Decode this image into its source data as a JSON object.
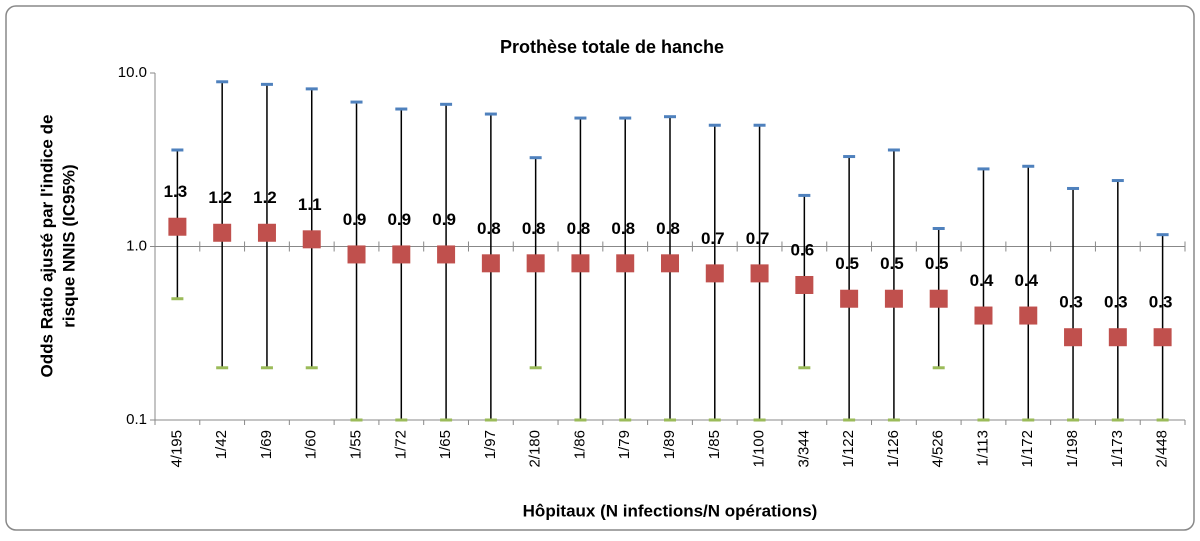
{
  "chart_data": {
    "type": "errorbar",
    "title": "Prothèse totale de hanche",
    "xlabel": "Hôpitaux (N infections/N opérations)",
    "ylabel_lines": [
      "Odds Ratio ajusté par l'indice de",
      "risque NNIS (IC95%)"
    ],
    "categories": [
      "4/195",
      "1/42",
      "1/69",
      "1/60",
      "1/55",
      "1/72",
      "1/65",
      "1/97",
      "2/180",
      "1/86",
      "1/79",
      "1/89",
      "1/85",
      "1/100",
      "3/344",
      "1/122",
      "1/126",
      "4/526",
      "1/113",
      "1/172",
      "1/198",
      "1/173",
      "2/448"
    ],
    "values": [
      1.3,
      1.2,
      1.2,
      1.1,
      0.9,
      0.9,
      0.9,
      0.8,
      0.8,
      0.8,
      0.8,
      0.8,
      0.7,
      0.7,
      0.6,
      0.5,
      0.5,
      0.5,
      0.4,
      0.4,
      0.3,
      0.3,
      0.3
    ],
    "upper": [
      3.6,
      8.9,
      8.6,
      8.1,
      6.8,
      6.2,
      6.6,
      5.8,
      3.25,
      5.5,
      5.5,
      5.6,
      5.0,
      5.0,
      1.97,
      3.3,
      3.6,
      1.27,
      2.8,
      2.9,
      2.16,
      2.4,
      1.17
    ],
    "lower": [
      0.5,
      0.2,
      0.2,
      0.2,
      0.1,
      0.1,
      0.1,
      0.1,
      0.2,
      0.1,
      0.1,
      0.1,
      0.1,
      0.1,
      0.2,
      0.1,
      0.1,
      0.2,
      0.1,
      0.1,
      0.1,
      0.1,
      0.1
    ],
    "color": "#c0504d",
    "upper_color": "#4f81bd",
    "lower_color": "#9bbb59",
    "log_scale": true,
    "ylim": [
      0.1,
      10
    ],
    "yticks": [
      0.1,
      {
        "value": 1,
        "label": "1.0"
      },
      {
        "value": 10,
        "label": "10.0"
      }
    ],
    "x_axis_at": 1
  }
}
